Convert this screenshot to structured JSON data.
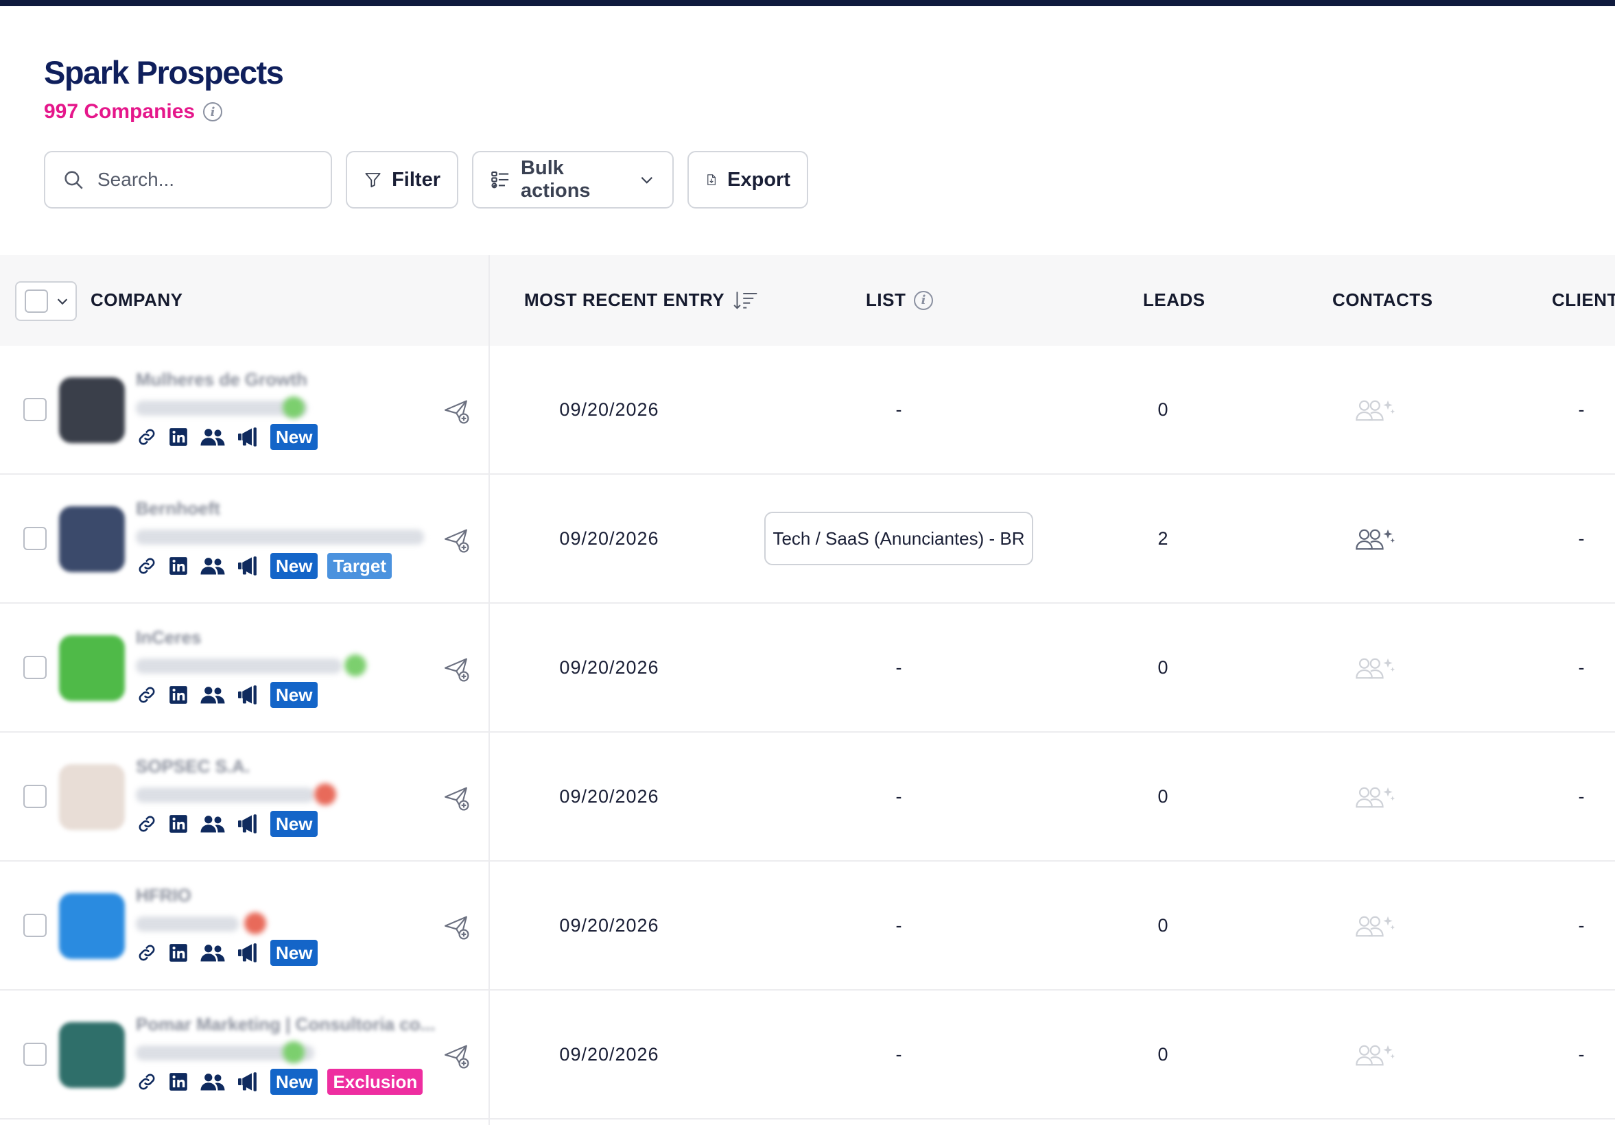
{
  "header": {
    "title": "Spark Prospects",
    "company_count": "997 Companies"
  },
  "toolbar": {
    "search_placeholder": "Search...",
    "filter_label": "Filter",
    "bulk_label": "Bulk actions",
    "export_label": "Export"
  },
  "table": {
    "columns": {
      "company": "COMPANY",
      "recent": "MOST RECENT ENTRY",
      "list": "LIST",
      "leads": "LEADS",
      "contacts": "CONTACTS",
      "client": "CLIENT"
    },
    "rows": [
      {
        "name": "Mulheres de Growth",
        "date": "09/20/2026",
        "list": "-",
        "leads": "0",
        "client": "-",
        "badges": [
          "New"
        ],
        "contacts_active": false
      },
      {
        "name": "Bernhoeft",
        "date": "09/20/2026",
        "list": "Tech / SaaS (Anunciantes) - BR",
        "leads": "2",
        "client": "-",
        "badges": [
          "New",
          "Target"
        ],
        "contacts_active": true
      },
      {
        "name": "InCeres",
        "date": "09/20/2026",
        "list": "-",
        "leads": "0",
        "client": "-",
        "badges": [
          "New"
        ],
        "contacts_active": false
      },
      {
        "name": "SOPSEC S.A.",
        "date": "09/20/2026",
        "list": "-",
        "leads": "0",
        "client": "-",
        "badges": [
          "New"
        ],
        "contacts_active": false
      },
      {
        "name": "HFRIO",
        "date": "09/20/2026",
        "list": "-",
        "leads": "0",
        "client": "-",
        "badges": [
          "New"
        ],
        "contacts_active": false
      },
      {
        "name": "Pomar Marketing | Consultoria co...",
        "date": "09/20/2026",
        "list": "-",
        "leads": "0",
        "client": "-",
        "badges": [
          "New",
          "Exclusion"
        ],
        "contacts_active": false
      }
    ]
  },
  "colors": {
    "title": "#0f1f5c",
    "count": "#e5178b",
    "badge_new": "#1465c8",
    "badge_target": "#4b92de",
    "badge_exclusion": "#ee2ea0",
    "logos": [
      "#3a3f4a",
      "#3b4a6b",
      "#4fba48",
      "#e8ddd6",
      "#2a8be0",
      "#2f6f6a"
    ],
    "status_dots": [
      "#7ccf6e",
      "",
      "#7ccf6e",
      "#e86a5a",
      "#e86a5a",
      "#7ccf6e"
    ]
  },
  "icons": [
    "search-icon",
    "filter-icon",
    "checklist-icon",
    "chevron-down-icon",
    "export-file-icon",
    "info-icon",
    "sort-desc-icon",
    "link-icon",
    "linkedin-icon",
    "people-icon",
    "megaphone-icon",
    "send-plus-icon",
    "contacts-sparkle-icon"
  ]
}
